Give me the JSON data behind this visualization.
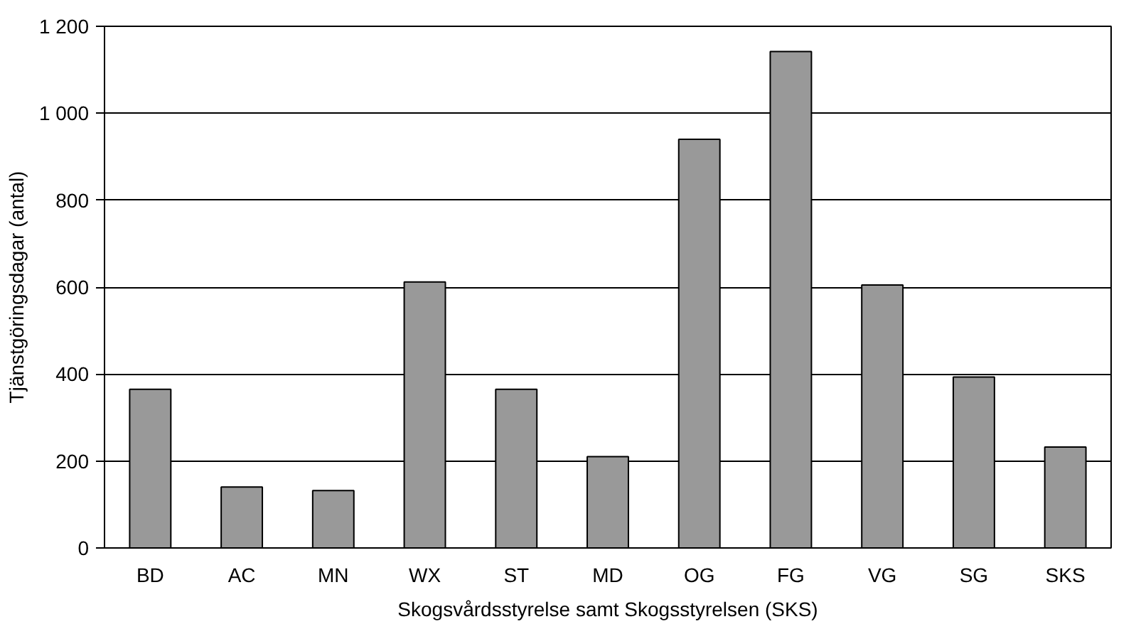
{
  "chart_data": {
    "type": "bar",
    "xlabel": "Skogsvårdsstyrelse samt Skogsstyrelsen (SKS)",
    "ylabel": "Tjänstgöringsdagar (antal)",
    "categories": [
      "BD",
      "AC",
      "MN",
      "WX",
      "ST",
      "MD",
      "OG",
      "FG",
      "VG",
      "SG",
      "SKS"
    ],
    "values": [
      365,
      140,
      132,
      612,
      365,
      210,
      940,
      1142,
      605,
      393,
      232
    ],
    "color": "#999999",
    "ylim": [
      0,
      1200
    ],
    "yticks": [
      0,
      200,
      400,
      600,
      800,
      {
        "value": 1000,
        "label": "1 000"
      },
      {
        "value": 1200,
        "label": "1 200"
      }
    ],
    "grid": "y"
  }
}
